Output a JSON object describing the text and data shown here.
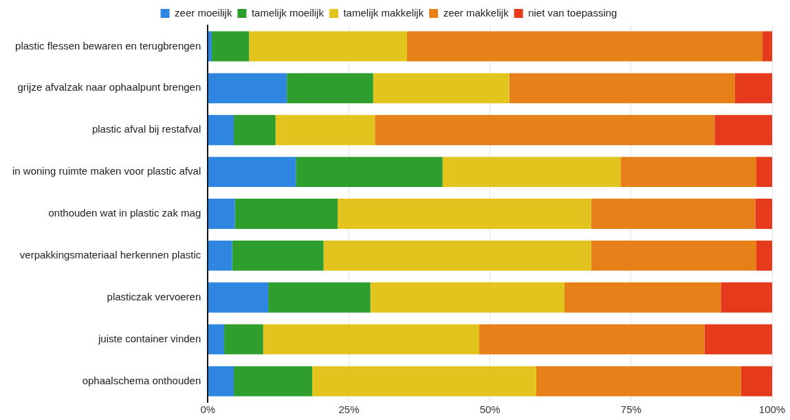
{
  "chart_data": {
    "type": "bar",
    "orientation": "horizontal",
    "stacked": true,
    "categories": [
      "plastic flessen bewaren en terugbrengen",
      "grijze afvalzak naar ophaalpunt brengen",
      "plastic afval bij restafval",
      "in woning ruimte maken voor plastic afval",
      "onthouden wat in plastic zak mag",
      "verpakkingsmateriaal herkennen plastic",
      "plasticzak vervoeren",
      "juiste container vinden",
      "ophaalschema onthouden"
    ],
    "series": [
      {
        "name": "zeer moeilijk",
        "color": "#2f86e0",
        "values": [
          0.7,
          14.0,
          4.6,
          15.6,
          4.8,
          4.3,
          10.7,
          2.9,
          4.6
        ]
      },
      {
        "name": "tamelijk moeilijk",
        "color": "#2e9e2e",
        "values": [
          6.6,
          15.3,
          7.4,
          26.0,
          18.2,
          16.2,
          18.1,
          6.9,
          13.9
        ]
      },
      {
        "name": "tamelijk makkelijk",
        "color": "#e3c41e",
        "values": [
          28.0,
          24.1,
          17.6,
          31.6,
          44.9,
          47.4,
          34.4,
          38.3,
          39.7
        ]
      },
      {
        "name": "zeer makkelijk",
        "color": "#e8801a",
        "values": [
          63.0,
          40.0,
          60.2,
          24.0,
          29.1,
          29.3,
          27.7,
          39.9,
          36.3
        ]
      },
      {
        "name": "niet van toepassing",
        "color": "#e53a1c",
        "values": [
          1.7,
          6.6,
          10.2,
          2.8,
          3.0,
          2.8,
          9.1,
          12.0,
          5.5
        ]
      }
    ],
    "xlim": [
      0,
      100
    ],
    "xticks": [
      {
        "value": 0,
        "label": "0%"
      },
      {
        "value": 25,
        "label": "25%"
      },
      {
        "value": 50,
        "label": "50%"
      },
      {
        "value": 75,
        "label": "75%"
      },
      {
        "value": 100,
        "label": "100%"
      }
    ],
    "grid": "x",
    "legend": "top"
  }
}
